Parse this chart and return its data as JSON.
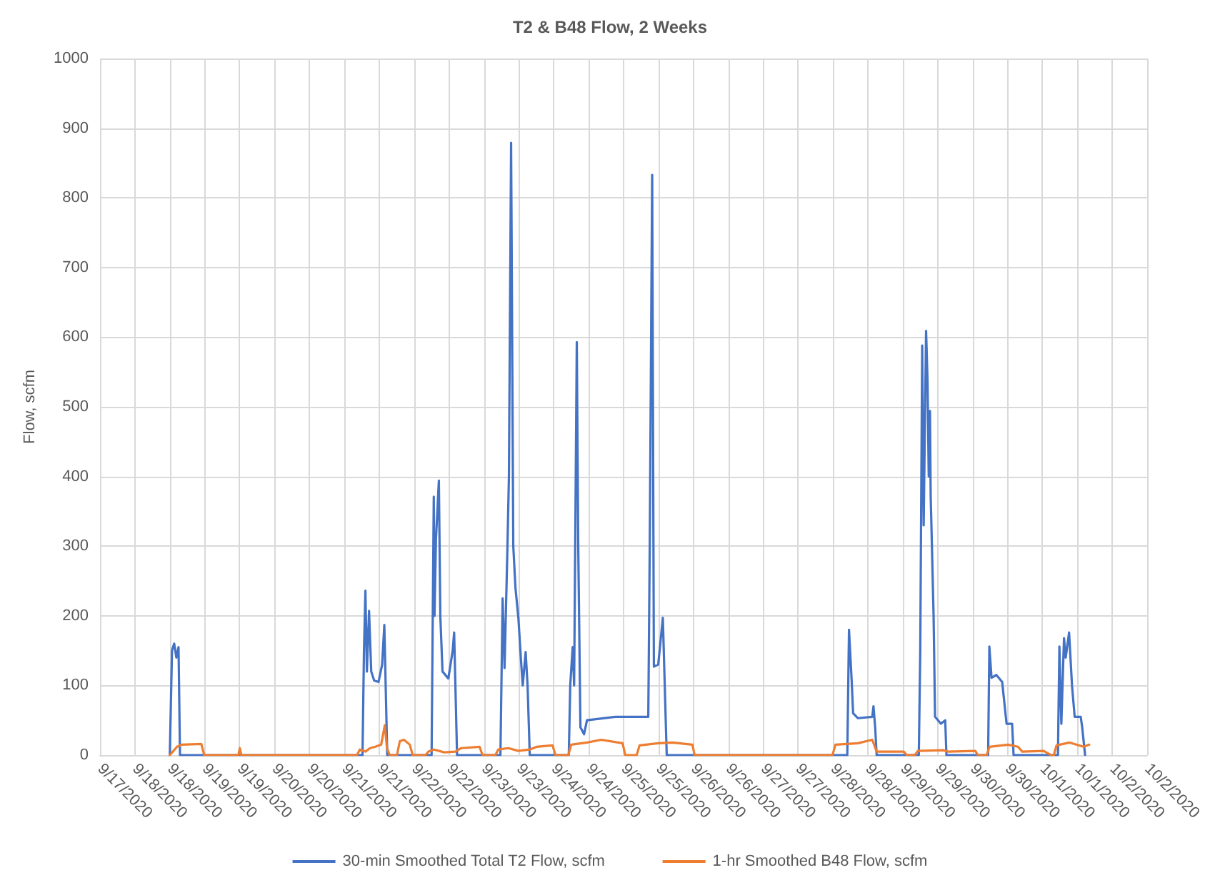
{
  "chart_data": {
    "type": "line",
    "title": "T2 & B48 Flow, 2 Weeks",
    "ylabel": "Flow, scfm",
    "xlim": [
      "2020-09-17T12:00",
      "2020-10-02T12:00"
    ],
    "xticks": [
      {
        "value": "2020-09-17T12:00",
        "label": "9/17/2020"
      },
      {
        "value": "2020-09-18T00:00",
        "label": "9/18/2020"
      },
      {
        "value": "2020-09-18T12:00",
        "label": "9/18/2020"
      },
      {
        "value": "2020-09-19T00:00",
        "label": "9/19/2020"
      },
      {
        "value": "2020-09-19T12:00",
        "label": "9/19/2020"
      },
      {
        "value": "2020-09-20T00:00",
        "label": "9/20/2020"
      },
      {
        "value": "2020-09-20T12:00",
        "label": "9/20/2020"
      },
      {
        "value": "2020-09-21T00:00",
        "label": "9/21/2020"
      },
      {
        "value": "2020-09-21T12:00",
        "label": "9/21/2020"
      },
      {
        "value": "2020-09-22T00:00",
        "label": "9/22/2020"
      },
      {
        "value": "2020-09-22T12:00",
        "label": "9/22/2020"
      },
      {
        "value": "2020-09-23T00:00",
        "label": "9/23/2020"
      },
      {
        "value": "2020-09-23T12:00",
        "label": "9/23/2020"
      },
      {
        "value": "2020-09-24T00:00",
        "label": "9/24/2020"
      },
      {
        "value": "2020-09-24T12:00",
        "label": "9/24/2020"
      },
      {
        "value": "2020-09-25T00:00",
        "label": "9/25/2020"
      },
      {
        "value": "2020-09-25T12:00",
        "label": "9/25/2020"
      },
      {
        "value": "2020-09-26T00:00",
        "label": "9/26/2020"
      },
      {
        "value": "2020-09-26T12:00",
        "label": "9/26/2020"
      },
      {
        "value": "2020-09-27T00:00",
        "label": "9/27/2020"
      },
      {
        "value": "2020-09-27T12:00",
        "label": "9/27/2020"
      },
      {
        "value": "2020-09-28T00:00",
        "label": "9/28/2020"
      },
      {
        "value": "2020-09-28T12:00",
        "label": "9/28/2020"
      },
      {
        "value": "2020-09-29T00:00",
        "label": "9/29/2020"
      },
      {
        "value": "2020-09-29T12:00",
        "label": "9/29/2020"
      },
      {
        "value": "2020-09-30T00:00",
        "label": "9/30/2020"
      },
      {
        "value": "2020-09-30T12:00",
        "label": "9/30/2020"
      },
      {
        "value": "2020-10-01T00:00",
        "label": "10/1/2020"
      },
      {
        "value": "2020-10-01T12:00",
        "label": "10/1/2020"
      },
      {
        "value": "2020-10-02T00:00",
        "label": "10/2/2020"
      },
      {
        "value": "2020-10-02T12:00",
        "label": "10/2/2020"
      }
    ],
    "ylim": [
      0,
      1000
    ],
    "yticks": [
      0,
      100,
      200,
      300,
      400,
      500,
      600,
      700,
      800,
      900,
      1000
    ],
    "grid": true,
    "legend": "bottom",
    "marker": "none",
    "line_style": "solid",
    "series": [
      {
        "name": "30-min Smoothed Total T2 Flow, scfm",
        "color": "#4472c4",
        "x": [
          "2020-09-18T12:00",
          "2020-09-18T12:45",
          "2020-09-18T13:30",
          "2020-09-18T14:15",
          "2020-09-18T15:00",
          "2020-09-18T15:30",
          "2020-09-21T06:15",
          "2020-09-21T06:45",
          "2020-09-21T07:15",
          "2020-09-21T07:45",
          "2020-09-21T08:30",
          "2020-09-21T09:15",
          "2020-09-21T10:15",
          "2020-09-21T11:45",
          "2020-09-21T13:00",
          "2020-09-21T13:45",
          "2020-09-21T14:45",
          "2020-09-22T06:00",
          "2020-09-22T06:45",
          "2020-09-22T07:00",
          "2020-09-22T07:30",
          "2020-09-22T08:30",
          "2020-09-22T09:00",
          "2020-09-22T09:45",
          "2020-09-22T11:45",
          "2020-09-22T13:15",
          "2020-09-22T13:45",
          "2020-09-22T14:45",
          "2020-09-23T05:40",
          "2020-09-23T06:25",
          "2020-09-23T07:05",
          "2020-09-23T08:05",
          "2020-09-23T08:35",
          "2020-09-23T09:20",
          "2020-09-23T10:05",
          "2020-09-23T10:50",
          "2020-09-23T11:50",
          "2020-09-23T12:50",
          "2020-09-23T13:20",
          "2020-09-23T14:20",
          "2020-09-23T15:00",
          "2020-09-23T15:45",
          "2020-09-24T05:10",
          "2020-09-24T05:40",
          "2020-09-24T06:30",
          "2020-09-24T07:00",
          "2020-09-24T07:55",
          "2020-09-24T08:25",
          "2020-09-24T09:10",
          "2020-09-24T10:25",
          "2020-09-24T11:25",
          "2020-09-24T21:10",
          "2020-09-25T08:30",
          "2020-09-25T09:00",
          "2020-09-25T09:50",
          "2020-09-25T10:25",
          "2020-09-25T11:55",
          "2020-09-25T13:30",
          "2020-09-25T14:50",
          "2020-09-28T04:55",
          "2020-09-28T05:30",
          "2020-09-28T06:25",
          "2020-09-28T06:55",
          "2020-09-28T08:35",
          "2020-09-28T13:30",
          "2020-09-28T13:55",
          "2020-09-28T14:30",
          "2020-09-28T15:00",
          "2020-09-29T05:30",
          "2020-09-29T06:00",
          "2020-09-29T06:40",
          "2020-09-29T07:10",
          "2020-09-29T08:00",
          "2020-09-29T08:30",
          "2020-09-29T08:55",
          "2020-09-29T09:20",
          "2020-09-29T09:35",
          "2020-09-29T10:35",
          "2020-09-29T11:05",
          "2020-09-29T13:05",
          "2020-09-29T14:35",
          "2020-09-29T15:00",
          "2020-09-30T05:20",
          "2020-09-30T05:45",
          "2020-09-30T06:30",
          "2020-09-30T08:10",
          "2020-09-30T10:10",
          "2020-09-30T11:40",
          "2020-09-30T13:35",
          "2020-09-30T14:05",
          "2020-10-01T05:20",
          "2020-10-01T05:50",
          "2020-10-01T06:30",
          "2020-10-01T07:25",
          "2020-10-01T08:00",
          "2020-10-01T09:10",
          "2020-10-01T10:10",
          "2020-10-01T11:05",
          "2020-10-01T13:10",
          "2020-10-01T13:40",
          "2020-10-01T14:40"
        ],
        "values": [
          0,
          150,
          160,
          140,
          155,
          0,
          0,
          150,
          236,
          120,
          207,
          120,
          107,
          105,
          130,
          187,
          0,
          0,
          371,
          200,
          310,
          394,
          200,
          120,
          110,
          150,
          176,
          0,
          0,
          225,
          125,
          300,
          400,
          879,
          300,
          240,
          197,
          130,
          100,
          148,
          100,
          0,
          0,
          100,
          155,
          100,
          593,
          300,
          40,
          30,
          50,
          55,
          55,
          300,
          833,
          127,
          130,
          197,
          0,
          0,
          180,
          107,
          60,
          53,
          55,
          70,
          40,
          0,
          0,
          150,
          588,
          330,
          609,
          537,
          400,
          494,
          373,
          200,
          55,
          45,
          50,
          0,
          0,
          156,
          111,
          115,
          105,
          45,
          45,
          0,
          0,
          156,
          45,
          168,
          140,
          176,
          100,
          55,
          55,
          40,
          0
        ]
      },
      {
        "name": "1-hr Smoothed B48 Flow, scfm",
        "color": "#ed7d31",
        "x": [
          "2020-09-18T12:00",
          "2020-09-18T14:30",
          "2020-09-18T16:00",
          "2020-09-18T22:50",
          "2020-09-18T23:50",
          "2020-09-19T11:35",
          "2020-09-19T12:05",
          "2020-09-19T12:35",
          "2020-09-21T04:20",
          "2020-09-21T05:20",
          "2020-09-21T07:15",
          "2020-09-21T08:50",
          "2020-09-21T10:40",
          "2020-09-21T12:40",
          "2020-09-21T13:55",
          "2020-09-21T14:40",
          "2020-09-21T15:35",
          "2020-09-21T18:05",
          "2020-09-21T19:05",
          "2020-09-21T20:30",
          "2020-09-21T22:30",
          "2020-09-21T23:30",
          "2020-09-22T03:55",
          "2020-09-22T04:55",
          "2020-09-22T06:50",
          "2020-09-22T10:20",
          "2020-09-22T14:10",
          "2020-09-22T16:10",
          "2020-09-22T22:30",
          "2020-09-22T23:30",
          "2020-09-23T03:55",
          "2020-09-23T04:55",
          "2020-09-23T08:25",
          "2020-09-23T11:50",
          "2020-09-23T15:45",
          "2020-09-23T18:10",
          "2020-09-23T23:35",
          "2020-09-24T00:35",
          "2020-09-24T05:00",
          "2020-09-24T06:00",
          "2020-09-24T11:25",
          "2020-09-24T16:20",
          "2020-09-24T23:40",
          "2020-09-25T00:35",
          "2020-09-25T04:30",
          "2020-09-25T05:30",
          "2020-09-25T11:55",
          "2020-09-25T16:50",
          "2020-09-25T23:40",
          "2020-09-26T00:25",
          "2020-09-27T23:50",
          "2020-09-28T00:50",
          "2020-09-28T08:35",
          "2020-09-28T13:30",
          "2020-09-28T15:00",
          "2020-09-29T00:20",
          "2020-09-29T01:20",
          "2020-09-29T04:10",
          "2020-09-29T05:10",
          "2020-09-29T14:05",
          "2020-09-29T15:30",
          "2020-09-30T00:55",
          "2020-09-30T01:50",
          "2020-09-30T04:50",
          "2020-09-30T05:50",
          "2020-09-30T12:10",
          "2020-09-30T15:35",
          "2020-09-30T17:05",
          "2020-10-01T00:25",
          "2020-10-01T02:55",
          "2020-10-01T03:55",
          "2020-10-01T04:50",
          "2020-10-01T09:20",
          "2020-10-01T14:10",
          "2020-10-01T16:05"
        ],
        "values": [
          0,
          12,
          15,
          16,
          0,
          0,
          10,
          0,
          0,
          8,
          5,
          10,
          12,
          15,
          43,
          10,
          0,
          0,
          20,
          22,
          15,
          0,
          0,
          5,
          8,
          4,
          5,
          10,
          12,
          0,
          0,
          8,
          10,
          6,
          8,
          12,
          14,
          0,
          0,
          15,
          18,
          22,
          17,
          0,
          0,
          14,
          17,
          18,
          15,
          0,
          0,
          15,
          17,
          22,
          5,
          5,
          0,
          0,
          6,
          7,
          5,
          6,
          0,
          0,
          12,
          15,
          12,
          5,
          6,
          0,
          0,
          14,
          18,
          12,
          15
        ]
      }
    ]
  }
}
